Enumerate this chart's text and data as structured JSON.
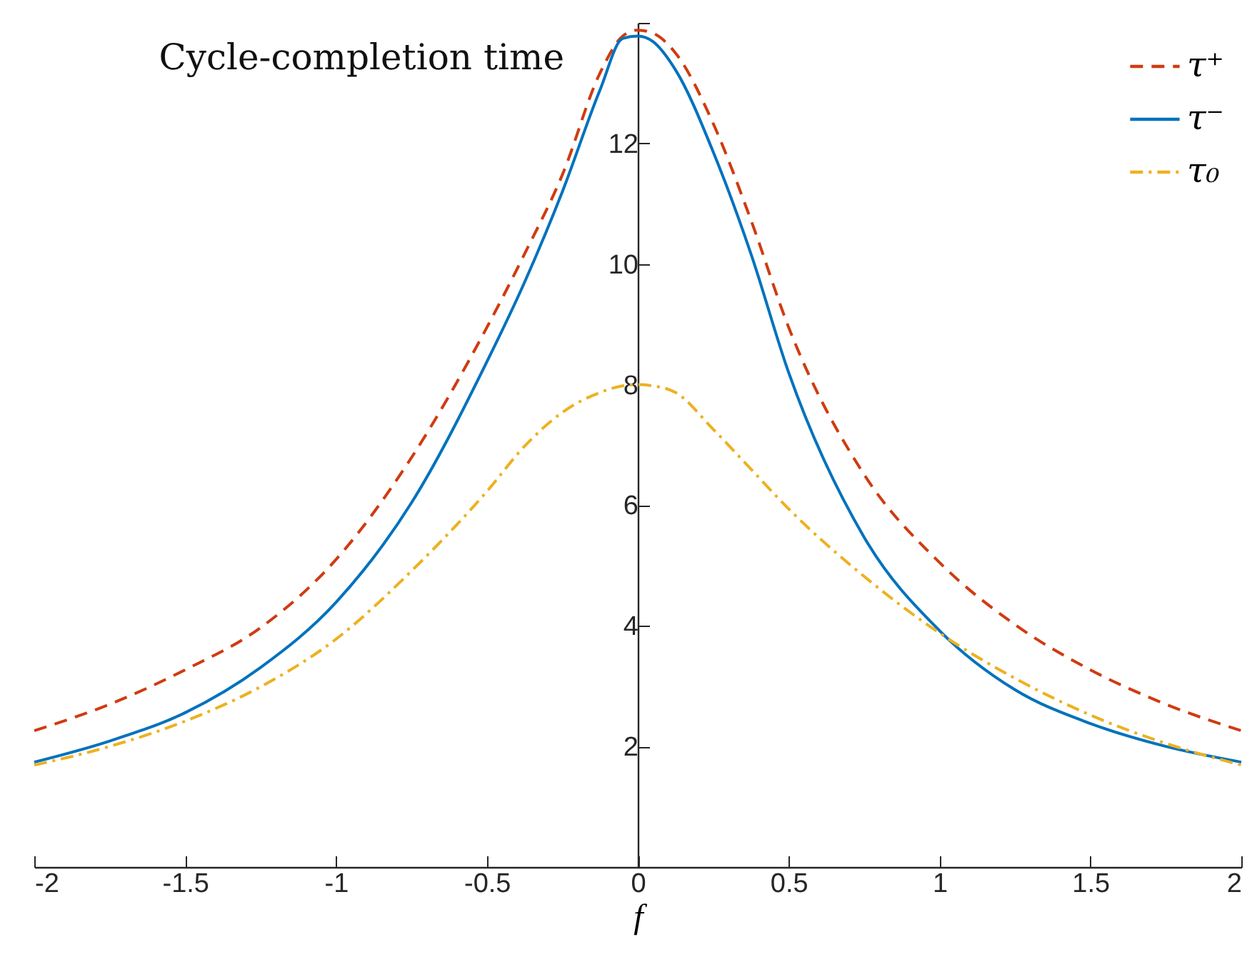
{
  "chart_data": {
    "type": "line",
    "ylabel": "Cycle-completion time",
    "xlabel": "f",
    "x": [
      -2,
      -1.75,
      -1.5,
      -1.25,
      -1,
      -0.75,
      -0.5,
      -0.375,
      -0.25,
      -0.125,
      -0.05,
      0,
      0.05,
      0.125,
      0.25,
      0.375,
      0.5,
      0.75,
      1,
      1.25,
      1.5,
      1.75,
      2
    ],
    "series": [
      {
        "name": "τ⁺",
        "color": "#d03b10",
        "line_style": "dashed",
        "values": [
          2.26,
          2.7,
          3.27,
          3.97,
          5.1,
          6.79,
          8.95,
          10.17,
          11.48,
          13.17,
          13.78,
          13.88,
          13.83,
          13.5,
          12.33,
          10.73,
          8.95,
          6.51,
          5.05,
          4.02,
          3.27,
          2.7,
          2.26
        ]
      },
      {
        "name": "τ⁻",
        "color": "#0072bd",
        "line_style": "solid",
        "values": [
          1.74,
          2.09,
          2.56,
          3.31,
          4.39,
          6.04,
          8.38,
          9.7,
          11.2,
          12.89,
          13.74,
          13.78,
          13.69,
          13.22,
          11.86,
          10.17,
          8.2,
          5.47,
          3.92,
          2.94,
          2.38,
          2.0,
          1.74
        ]
      },
      {
        "name": "τ₀",
        "color": "#edb120",
        "line_style": "dashdot",
        "values": [
          1.69,
          2.0,
          2.42,
          2.99,
          3.78,
          4.91,
          6.23,
          6.98,
          7.54,
          7.87,
          7.98,
          8.0,
          7.98,
          7.87,
          7.26,
          6.6,
          5.94,
          4.82,
          3.88,
          3.13,
          2.52,
          2.05,
          1.69
        ]
      }
    ],
    "xlim": [
      -2,
      2
    ],
    "xticks": [
      -2,
      -1.5,
      -1,
      -0.5,
      0,
      0.5,
      1,
      1.5,
      2
    ],
    "ylim": [
      0,
      14
    ],
    "yticks": [
      2,
      4,
      6,
      8,
      10,
      12,
      {
        "value": 14,
        "label": null
      }
    ],
    "grid": false,
    "legend": "top right",
    "marker": "none"
  }
}
